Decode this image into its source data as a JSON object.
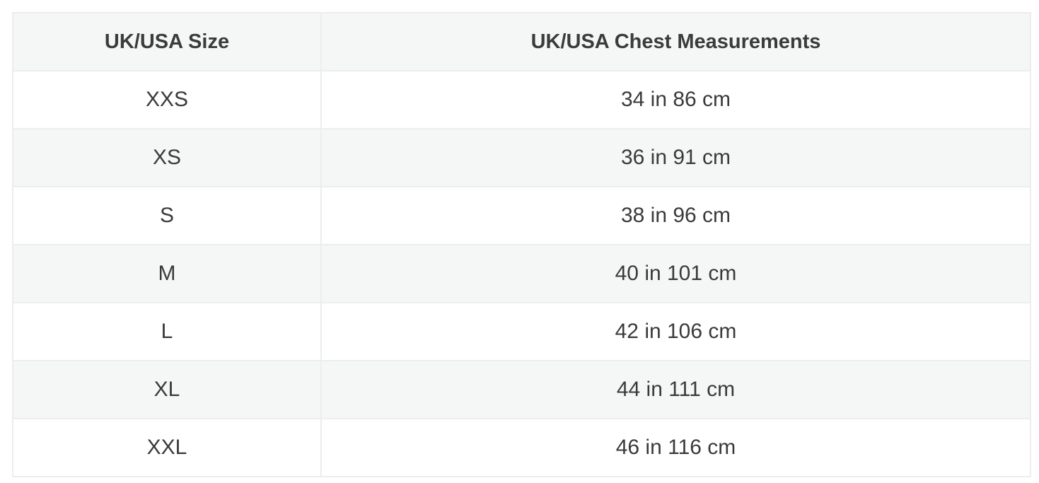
{
  "size_table": {
    "headers": {
      "size": "UK/USA Size",
      "chest": "UK/USA Chest Measurements"
    },
    "rows": [
      {
        "size": "XXS",
        "chest": "34 in 86 cm"
      },
      {
        "size": "XS",
        "chest": "36 in 91 cm"
      },
      {
        "size": "S",
        "chest": "38 in 96 cm"
      },
      {
        "size": "M",
        "chest": "40 in 101 cm"
      },
      {
        "size": "L",
        "chest": "42 in 106 cm"
      },
      {
        "size": "XL",
        "chest": "44 in 111 cm"
      },
      {
        "size": "XXL",
        "chest": "46 in 116 cm"
      }
    ]
  },
  "colors": {
    "header_background": "#f5f7f6",
    "stripe_background": "#f5f7f6",
    "border": "#ebeeed",
    "text": "#3a3a3a"
  }
}
